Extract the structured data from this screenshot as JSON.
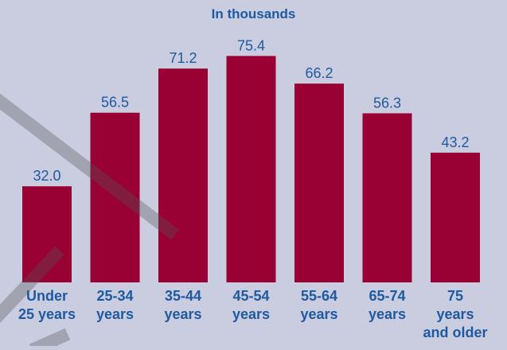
{
  "chart_data": {
    "type": "bar",
    "subtitle": "In thousands",
    "categories": [
      [
        "Under",
        "25 years"
      ],
      [
        "25-34",
        "years"
      ],
      [
        "35-44",
        "years"
      ],
      [
        "45-54",
        "years"
      ],
      [
        "55-64",
        "years"
      ],
      [
        "65-74",
        "years"
      ],
      [
        "75",
        "years",
        "and older"
      ]
    ],
    "values": [
      32.0,
      56.5,
      71.2,
      75.4,
      66.2,
      56.3,
      43.2
    ],
    "value_labels": [
      "32.0",
      "56.5",
      "71.2",
      "75.4",
      "66.2",
      "56.3",
      "43.2"
    ],
    "ylim": [
      0,
      80
    ],
    "grid": false,
    "bar_color": "#990033",
    "label_color": "#1f5aa0",
    "background": "#cacce0"
  }
}
